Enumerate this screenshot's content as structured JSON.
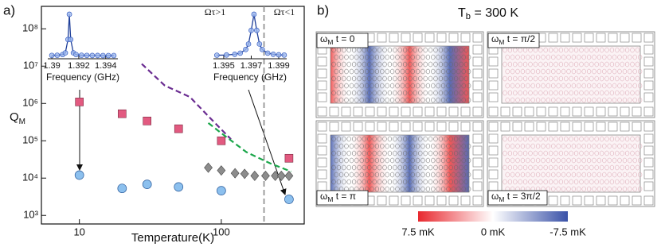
{
  "chart_data": {
    "type": "scatter",
    "panel_label": "a)",
    "xlabel": "Temperature(K)",
    "ylabel": "Q",
    "ylabel_sub": "M",
    "xscale": "log",
    "yscale": "log",
    "xlim": [
      5.4,
      384
    ],
    "ylim": [
      590,
      400000000
    ],
    "xticks": [
      10,
      100
    ],
    "yticks": [
      {
        "value": 1000,
        "label": "10³"
      },
      {
        "value": 10000,
        "label": "10⁴"
      },
      {
        "value": 100000,
        "label": "10⁵"
      },
      {
        "value": 1000000,
        "label": "10⁶"
      },
      {
        "value": 10000000,
        "label": "10⁷"
      },
      {
        "value": 100000000,
        "label": "10⁸"
      }
    ],
    "series": [
      {
        "marker": "square",
        "color": "#e25a80",
        "x": [
          10,
          20,
          30,
          50,
          100,
          300
        ],
        "values": [
          1100000,
          530000,
          340000,
          210000,
          100000,
          34000
        ]
      },
      {
        "marker": "circle",
        "color": "#8cc0ee",
        "x": [
          10,
          20,
          30,
          50,
          100,
          300
        ],
        "values": [
          12000,
          5300,
          6800,
          5800,
          4600,
          2700
        ]
      },
      {
        "marker": "diamond",
        "color": "#8c8c8c",
        "x": [
          81,
          100,
          125,
          146,
          172,
          205,
          240,
          265,
          300
        ],
        "values": [
          19000,
          16000,
          13500,
          13000,
          11500,
          11500,
          11500,
          11500,
          11500
        ]
      },
      {
        "marker": "dashed",
        "color": "#6a2c91",
        "x": [
          27.5,
          40,
          60,
          80,
          117
        ],
        "values": [
          11500000,
          3000000,
          1500000,
          480000,
          110000
        ]
      },
      {
        "marker": "dashed",
        "color": "#1aa64a",
        "x": [
          81,
          100,
          150,
          220,
          310
        ],
        "values": [
          300000,
          160000,
          50000,
          25000,
          15000
        ]
      }
    ],
    "vline": {
      "x": 200,
      "color": "#888888"
    },
    "annotations": [
      "Ωτ>1",
      "Ωτ<1"
    ],
    "insets": [
      {
        "xlabel": "Frequency (GHz)",
        "xlim": [
          1.3897,
          1.3949
        ],
        "xticks": [
          1.39,
          1.392,
          1.394
        ],
        "color": "#3a5fc0",
        "x": [
          1.39,
          1.3904,
          1.3908,
          1.391,
          1.3912,
          1.3913,
          1.3914,
          1.3916,
          1.3918,
          1.3922,
          1.3926,
          1.393,
          1.3934,
          1.3938,
          1.3942,
          1.3946
        ],
        "values": [
          0.004,
          0.008,
          0.025,
          0.066,
          0.39,
          1,
          0.39,
          0.066,
          0.025,
          0.008,
          0.004,
          0.002,
          0.002,
          0.001,
          0.001,
          0.001
        ]
      },
      {
        "xlabel": "Frequency (GHz)",
        "xlim": [
          1.39425,
          1.39958
        ],
        "xticks": [
          1.395,
          1.397,
          1.399
        ],
        "color": "#3a5fc0",
        "x": [
          1.3945,
          1.3952,
          1.3958,
          1.3962,
          1.3966,
          1.3968,
          1.397,
          1.3972,
          1.3974,
          1.3976,
          1.3978,
          1.3982,
          1.3986,
          1.399,
          1.3994
        ],
        "values": [
          0.0085,
          0.015,
          0.031,
          0.059,
          0.148,
          0.28,
          0.61,
          1,
          0.61,
          0.28,
          0.148,
          0.059,
          0.031,
          0.019,
          0.013
        ]
      }
    ]
  },
  "panel_b": {
    "label": "b)",
    "title": {
      "symbol": "T",
      "subscript": "b",
      "text": " = 300 K"
    },
    "frames": [
      {
        "symbol": "ω",
        "subscript": "M",
        "text": " t = 0"
      },
      {
        "symbol": "ω",
        "subscript": "M",
        "text": " t = π/2"
      },
      {
        "symbol": "ω",
        "subscript": "M",
        "text": " t = π"
      },
      {
        "symbol": "ω",
        "subscript": "M",
        "text": " t = 3π/2"
      }
    ],
    "colorbar": {
      "labels": [
        "7.5 mK",
        "0 mK",
        "-7.5 mK"
      ]
    }
  }
}
